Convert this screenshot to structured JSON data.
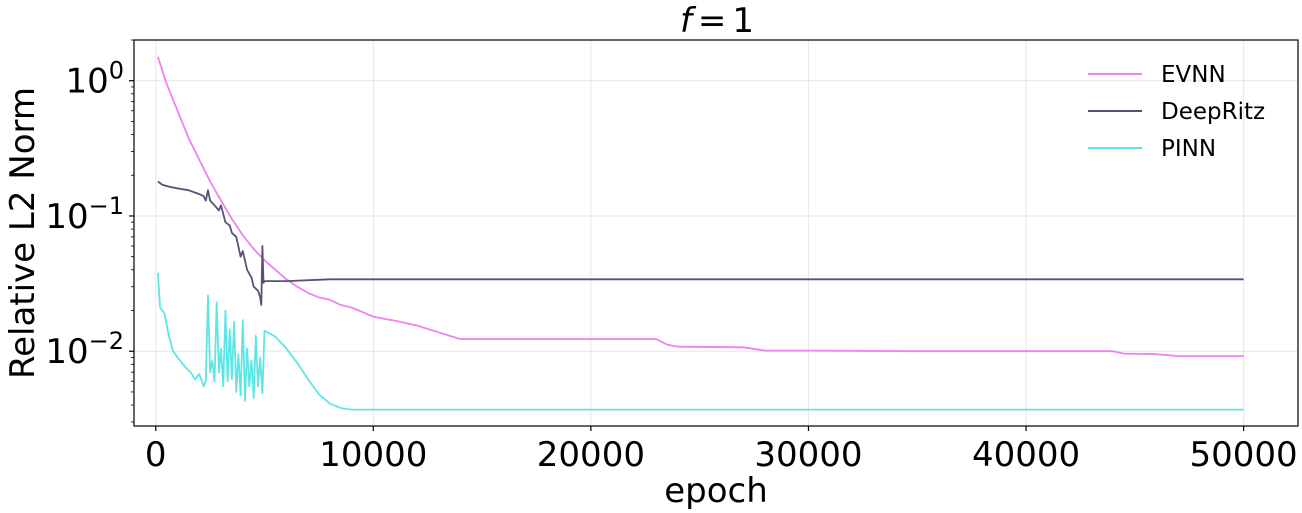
{
  "chart_data": {
    "type": "line",
    "title_var": "f",
    "title_value": "1",
    "xlabel": "epoch",
    "ylabel": "Relative L2 Norm",
    "xlim": [
      -1000,
      52500
    ],
    "ylim": [
      0.0028,
      2.0
    ],
    "yscale": "log",
    "grid": true,
    "legend_position": "top-right",
    "xticks": [
      0,
      10000,
      20000,
      30000,
      40000,
      50000
    ],
    "yticks": [
      {
        "value": 1,
        "base": "10",
        "exp": "0"
      },
      {
        "value": 0.1,
        "base": "10",
        "exp": "−1"
      },
      {
        "value": 0.01,
        "base": "10",
        "exp": "−2"
      }
    ],
    "series": [
      {
        "name": "EVNN",
        "color": "#ee82ee",
        "x": [
          100,
          500,
          1000,
          1500,
          2000,
          2500,
          3000,
          3500,
          4000,
          4500,
          5000,
          5500,
          6000,
          6500,
          7000,
          7500,
          8000,
          8500,
          9000,
          9500,
          10000,
          11000,
          12000,
          13000,
          14000,
          15000,
          20000,
          23000,
          23500,
          24000,
          27000,
          28000,
          30000,
          35000,
          40000,
          44000,
          44500,
          46000,
          47000,
          50000
        ],
        "y": [
          1.5,
          0.95,
          0.6,
          0.38,
          0.26,
          0.18,
          0.13,
          0.095,
          0.072,
          0.057,
          0.047,
          0.04,
          0.034,
          0.03,
          0.027,
          0.025,
          0.024,
          0.022,
          0.021,
          0.0195,
          0.018,
          0.0168,
          0.0155,
          0.0138,
          0.0123,
          0.0123,
          0.0123,
          0.0123,
          0.0112,
          0.0108,
          0.0107,
          0.0101,
          0.0101,
          0.01,
          0.01,
          0.01,
          0.0096,
          0.0095,
          0.0092,
          0.0092
        ]
      },
      {
        "name": "DeepRitz",
        "color": "#555273",
        "x": [
          100,
          300,
          600,
          1000,
          1500,
          2000,
          2200,
          2300,
          2400,
          2500,
          2700,
          2900,
          3000,
          3200,
          3400,
          3500,
          3700,
          3900,
          4000,
          4200,
          4400,
          4500,
          4700,
          4800,
          4850,
          4900,
          4950,
          5000,
          6000,
          8000,
          10000,
          20000,
          30000,
          40000,
          50000
        ],
        "y": [
          0.18,
          0.17,
          0.165,
          0.16,
          0.155,
          0.145,
          0.14,
          0.13,
          0.155,
          0.13,
          0.12,
          0.11,
          0.12,
          0.09,
          0.085,
          0.075,
          0.07,
          0.05,
          0.055,
          0.04,
          0.035,
          0.03,
          0.028,
          0.025,
          0.022,
          0.06,
          0.032,
          0.033,
          0.033,
          0.034,
          0.034,
          0.034,
          0.034,
          0.034,
          0.034
        ]
      },
      {
        "name": "PINN",
        "color": "#5ee6e6",
        "x": [
          100,
          200,
          400,
          600,
          800,
          1000,
          1200,
          1400,
          1600,
          1800,
          2000,
          2200,
          2300,
          2400,
          2500,
          2600,
          2700,
          2800,
          2900,
          3000,
          3100,
          3200,
          3300,
          3400,
          3500,
          3600,
          3700,
          3800,
          3900,
          4000,
          4100,
          4200,
          4300,
          4400,
          4500,
          4600,
          4700,
          4800,
          4900,
          5000,
          5500,
          6000,
          6500,
          7000,
          7500,
          8000,
          8500,
          9000,
          9500,
          10000,
          15000,
          20000,
          30000,
          40000,
          50000
        ],
        "y": [
          0.038,
          0.021,
          0.019,
          0.013,
          0.01,
          0.009,
          0.0082,
          0.0075,
          0.007,
          0.0062,
          0.0068,
          0.0055,
          0.006,
          0.026,
          0.007,
          0.0085,
          0.006,
          0.023,
          0.007,
          0.0105,
          0.0055,
          0.02,
          0.006,
          0.0145,
          0.0062,
          0.0165,
          0.005,
          0.0095,
          0.0047,
          0.017,
          0.0043,
          0.0105,
          0.0055,
          0.0085,
          0.0045,
          0.013,
          0.0055,
          0.009,
          0.0049,
          0.0142,
          0.0128,
          0.0105,
          0.0082,
          0.0062,
          0.0048,
          0.0041,
          0.0038,
          0.0037,
          0.0037,
          0.0037,
          0.0037,
          0.0037,
          0.0037,
          0.0037,
          0.0037
        ]
      }
    ]
  }
}
